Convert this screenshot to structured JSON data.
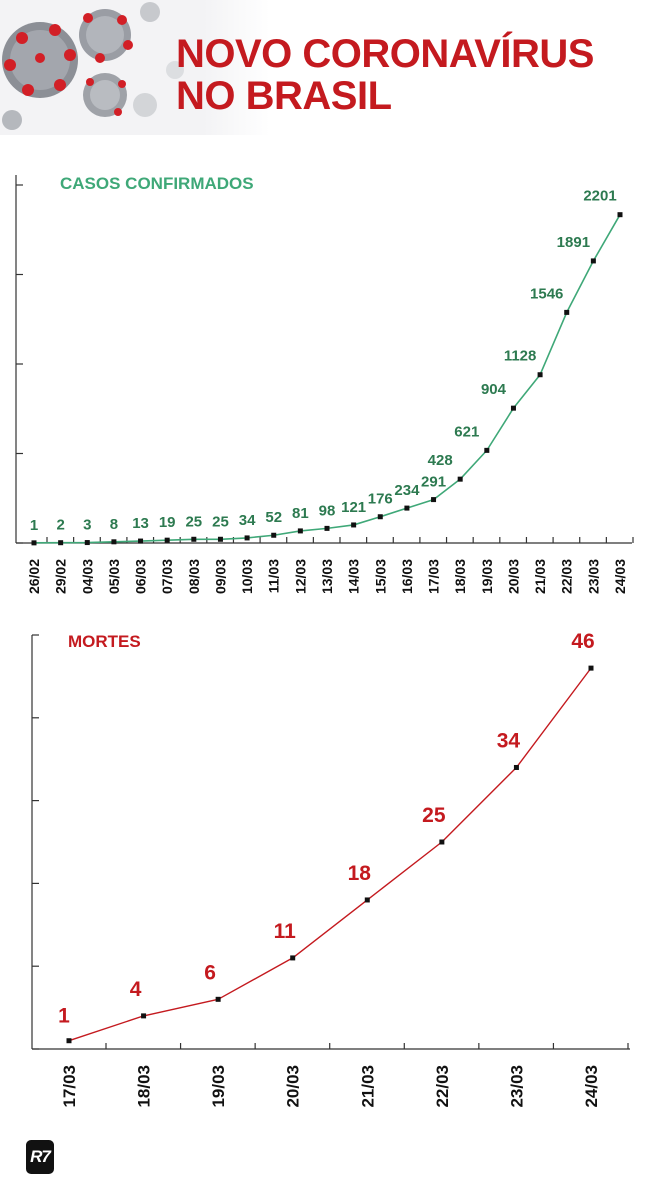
{
  "header": {
    "title_line1": "NOVO CORONAVÍRUS",
    "title_line2": "NO BRASIL"
  },
  "logo": {
    "text": "R7"
  },
  "colors": {
    "title": "#c41a1f",
    "cases": "#3fa878",
    "cases_labels": "#2d7a50",
    "deaths": "#c41a1f",
    "axis": "#333333",
    "marker": "#111111"
  },
  "chart_data": [
    {
      "type": "line",
      "title": "CASOS CONFIRMADOS",
      "categories": [
        "26/02",
        "29/02",
        "04/03",
        "05/03",
        "06/03",
        "07/03",
        "08/03",
        "09/03",
        "10/03",
        "11/03",
        "12/03",
        "13/03",
        "14/03",
        "15/03",
        "16/03",
        "17/03",
        "18/03",
        "19/03",
        "20/03",
        "21/03",
        "22/03",
        "23/03",
        "24/03"
      ],
      "series": [
        {
          "values": [
            1,
            2,
            3,
            8,
            13,
            19,
            25,
            25,
            34,
            52,
            81,
            98,
            121,
            176,
            234,
            291,
            428,
            621,
            904,
            1128,
            1546,
            1891,
            2201
          ]
        }
      ],
      "data_labels": [
        "1",
        "2",
        "3",
        "8",
        "13",
        "19",
        "25",
        "25",
        "34",
        "52",
        "81",
        "98",
        "121",
        "176",
        "234",
        "291",
        "428",
        "621",
        "904",
        "1128",
        "1546",
        "1891",
        "2201"
      ],
      "ylim": [
        0,
        2400
      ],
      "grid": false,
      "color": "#3fa878"
    },
    {
      "type": "line",
      "title": "MORTES",
      "categories": [
        "17/03",
        "18/03",
        "19/03",
        "20/03",
        "21/03",
        "22/03",
        "23/03",
        "24/03"
      ],
      "series": [
        {
          "values": [
            1,
            4,
            6,
            11,
            18,
            25,
            34,
            46
          ]
        }
      ],
      "data_labels": [
        "1",
        "4",
        "6",
        "11",
        "18",
        "25",
        "34",
        "46"
      ],
      "ylim": [
        0,
        50
      ],
      "grid": false,
      "color": "#c41a1f"
    }
  ]
}
